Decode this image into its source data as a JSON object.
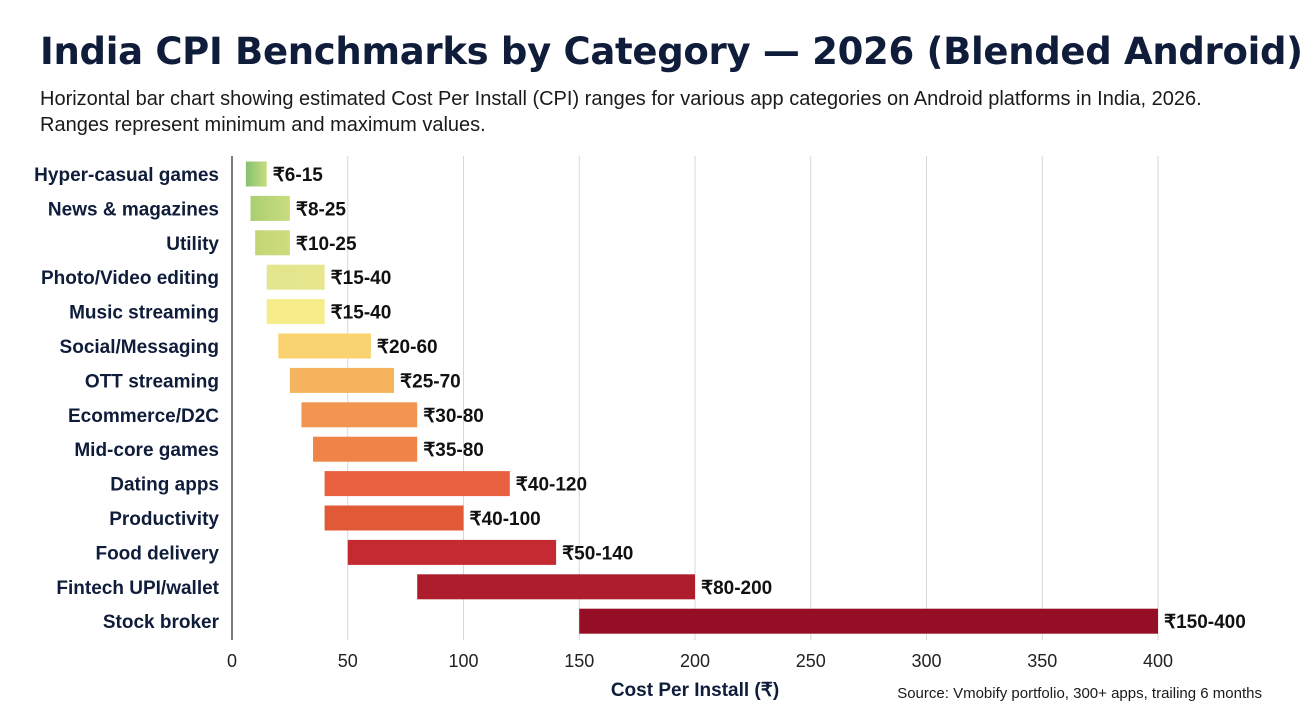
{
  "title": "India CPI Benchmarks by Category — 2026 (Blended Android)",
  "subtitle": "Horizontal bar chart showing estimated Cost Per Install (CPI) ranges for various app categories on Android platforms in India, 2026. Ranges represent minimum and maximum values.",
  "source": "Source: Vmobify portfolio, 300+ apps, trailing 6 months",
  "chart_data": {
    "type": "bar",
    "orientation": "horizontal",
    "subtype": "range",
    "xlabel": "Cost Per Install (₹)",
    "ylabel": "",
    "xlim": [
      0,
      400
    ],
    "xticks": [
      0,
      50,
      100,
      150,
      200,
      250,
      300,
      350,
      400
    ],
    "grid": true,
    "categories": [
      "Hyper-casual games",
      "News & magazines",
      "Utility",
      "Photo/Video editing",
      "Music streaming",
      "Social/Messaging",
      "OTT streaming",
      "Ecommerce/D2C",
      "Mid-core games",
      "Dating apps",
      "Productivity",
      "Food delivery",
      "Fintech UPI/wallet",
      "Stock broker"
    ],
    "ranges": [
      [
        6,
        15
      ],
      [
        8,
        25
      ],
      [
        10,
        25
      ],
      [
        15,
        40
      ],
      [
        15,
        40
      ],
      [
        20,
        60
      ],
      [
        25,
        70
      ],
      [
        30,
        80
      ],
      [
        35,
        80
      ],
      [
        40,
        120
      ],
      [
        40,
        100
      ],
      [
        50,
        140
      ],
      [
        80,
        200
      ],
      [
        150,
        400
      ]
    ],
    "labels": [
      "₹6-15",
      "₹8-25",
      "₹10-25",
      "₹15-40",
      "₹15-40",
      "₹20-60",
      "₹25-70",
      "₹30-80",
      "₹35-80",
      "₹40-120",
      "₹40-100",
      "₹50-140",
      "₹80-200",
      "₹150-400"
    ],
    "colors": [
      "#86c172",
      "#a9cf72",
      "#c2d676",
      "#e3e68f",
      "#f6ec8a",
      "#f8d36f",
      "#f4b35c",
      "#f19550",
      "#ef8348",
      "#e8603f",
      "#e05a37",
      "#c42a31",
      "#ad1d2c",
      "#960e25"
    ],
    "colors_end": [
      "#c6dd7e",
      "#c9dc7e",
      "#cfdc7e",
      "#e6e68c",
      "#f6ec8a",
      "#f8d36f",
      "#f4b35c",
      "#f19550",
      "#ef8348",
      "#e8603f",
      "#e05a37",
      "#c42a31",
      "#ad1d2c",
      "#960e25"
    ],
    "gridline_color": "#d7d7d7",
    "axis_color": "#333333"
  }
}
